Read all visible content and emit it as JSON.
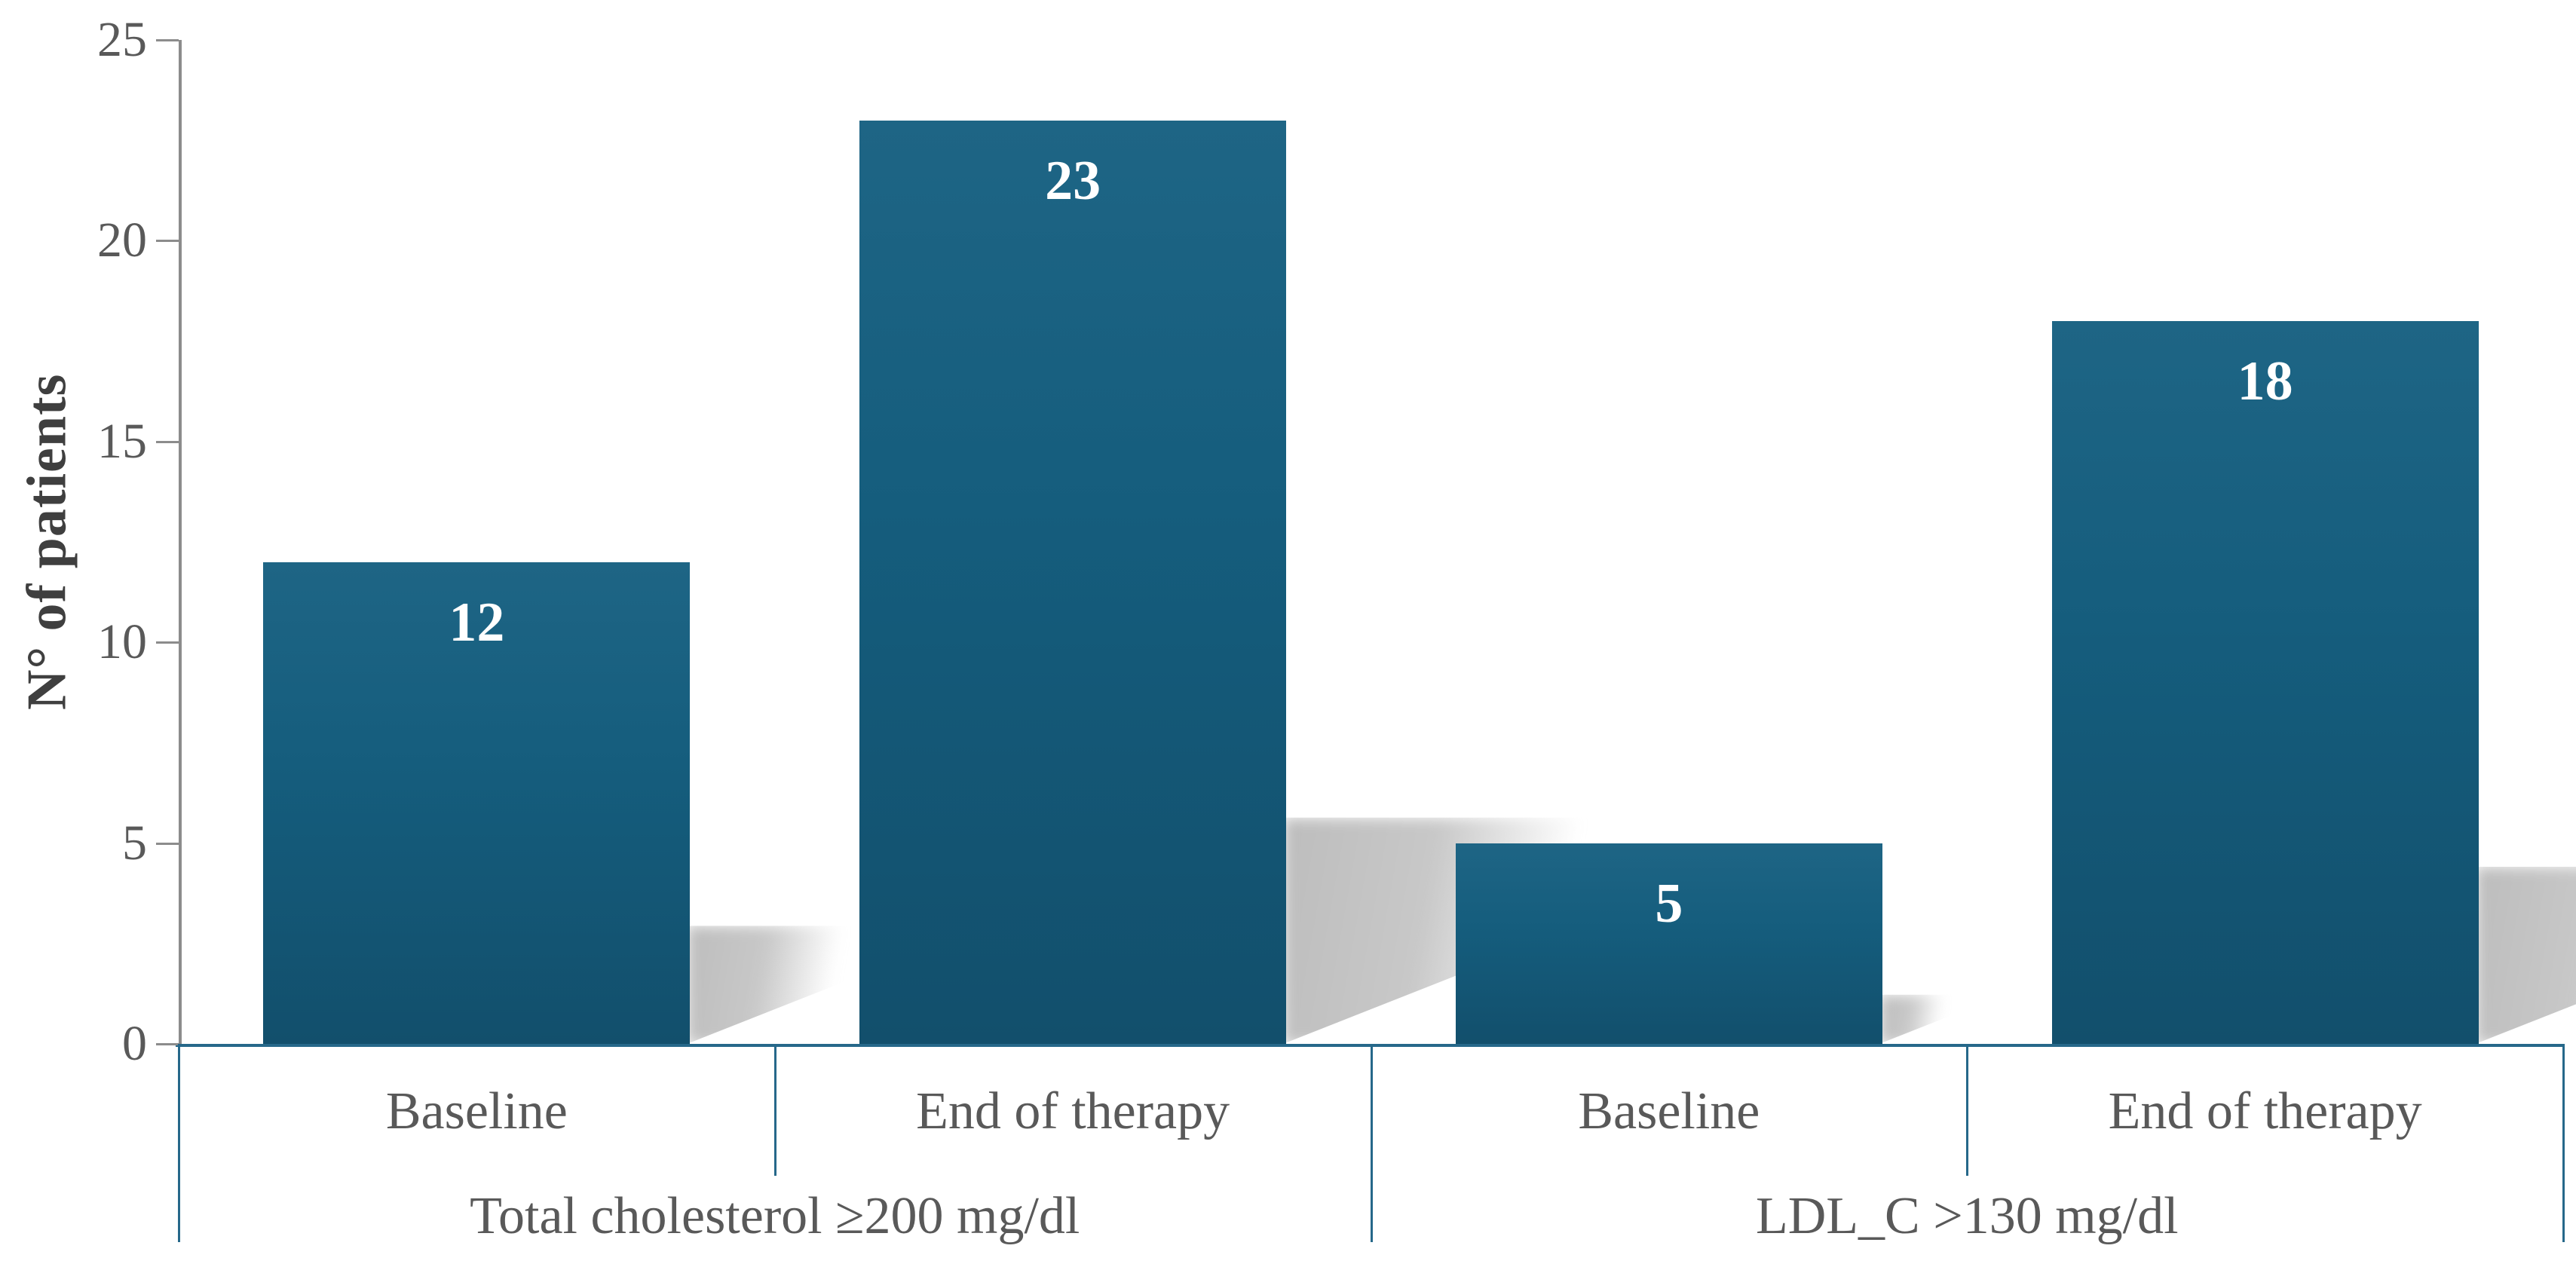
{
  "chart_data": {
    "type": "bar",
    "title": "",
    "ylabel": "N° of patients",
    "xlabel": "",
    "ylim": [
      0,
      25
    ],
    "yticks": [
      0,
      5,
      10,
      15,
      20,
      25
    ],
    "grid": false,
    "legend_position": "none",
    "categories": [
      "Baseline",
      "End of therapy",
      "Baseline",
      "End of therapy"
    ],
    "values": [
      12,
      23,
      5,
      18
    ],
    "series": [
      {
        "name": "N° of patients",
        "values": [
          12,
          23,
          5,
          18
        ]
      }
    ],
    "groups": [
      {
        "label": "Total cholesterol ≥200 mg/dl",
        "span": [
          0,
          2
        ]
      },
      {
        "label": "LDL_C >130 mg/dl",
        "span": [
          2,
          4
        ]
      }
    ],
    "bar_color": "#155d7d",
    "value_label_color": "#ffffff",
    "axis_line_color": "#26688a",
    "tick_line_color": "#8c8c8c",
    "text_color": "#595959",
    "shadow_color": "#c3c3c3"
  }
}
